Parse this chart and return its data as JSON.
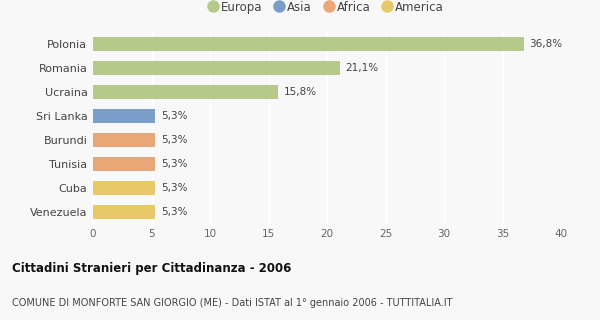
{
  "categories": [
    "Venezuela",
    "Cuba",
    "Tunisia",
    "Burundi",
    "Sri Lanka",
    "Ucraina",
    "Romania",
    "Polonia"
  ],
  "values": [
    5.3,
    5.3,
    5.3,
    5.3,
    5.3,
    15.8,
    21.1,
    36.8
  ],
  "labels": [
    "5,3%",
    "5,3%",
    "5,3%",
    "5,3%",
    "5,3%",
    "15,8%",
    "21,1%",
    "36,8%"
  ],
  "colors": [
    "#e8c96a",
    "#e8c96a",
    "#e8a878",
    "#e8a878",
    "#7a9ec8",
    "#b5c98a",
    "#b5c98a",
    "#b5c98a"
  ],
  "legend_items": [
    {
      "label": "Europa",
      "color": "#b5c98a"
    },
    {
      "label": "Asia",
      "color": "#7a9ec8"
    },
    {
      "label": "Africa",
      "color": "#e8a878"
    },
    {
      "label": "America",
      "color": "#e8c96a"
    }
  ],
  "xlim": [
    0,
    40
  ],
  "xticks": [
    0,
    5,
    10,
    15,
    20,
    25,
    30,
    35,
    40
  ],
  "title": "Cittadini Stranieri per Cittadinanza - 2006",
  "subtitle": "COMUNE DI MONFORTE SAN GIORGIO (ME) - Dati ISTAT al 1° gennaio 2006 - TUTTITALIA.IT",
  "background_color": "#f8f8f8",
  "bar_height": 0.6
}
